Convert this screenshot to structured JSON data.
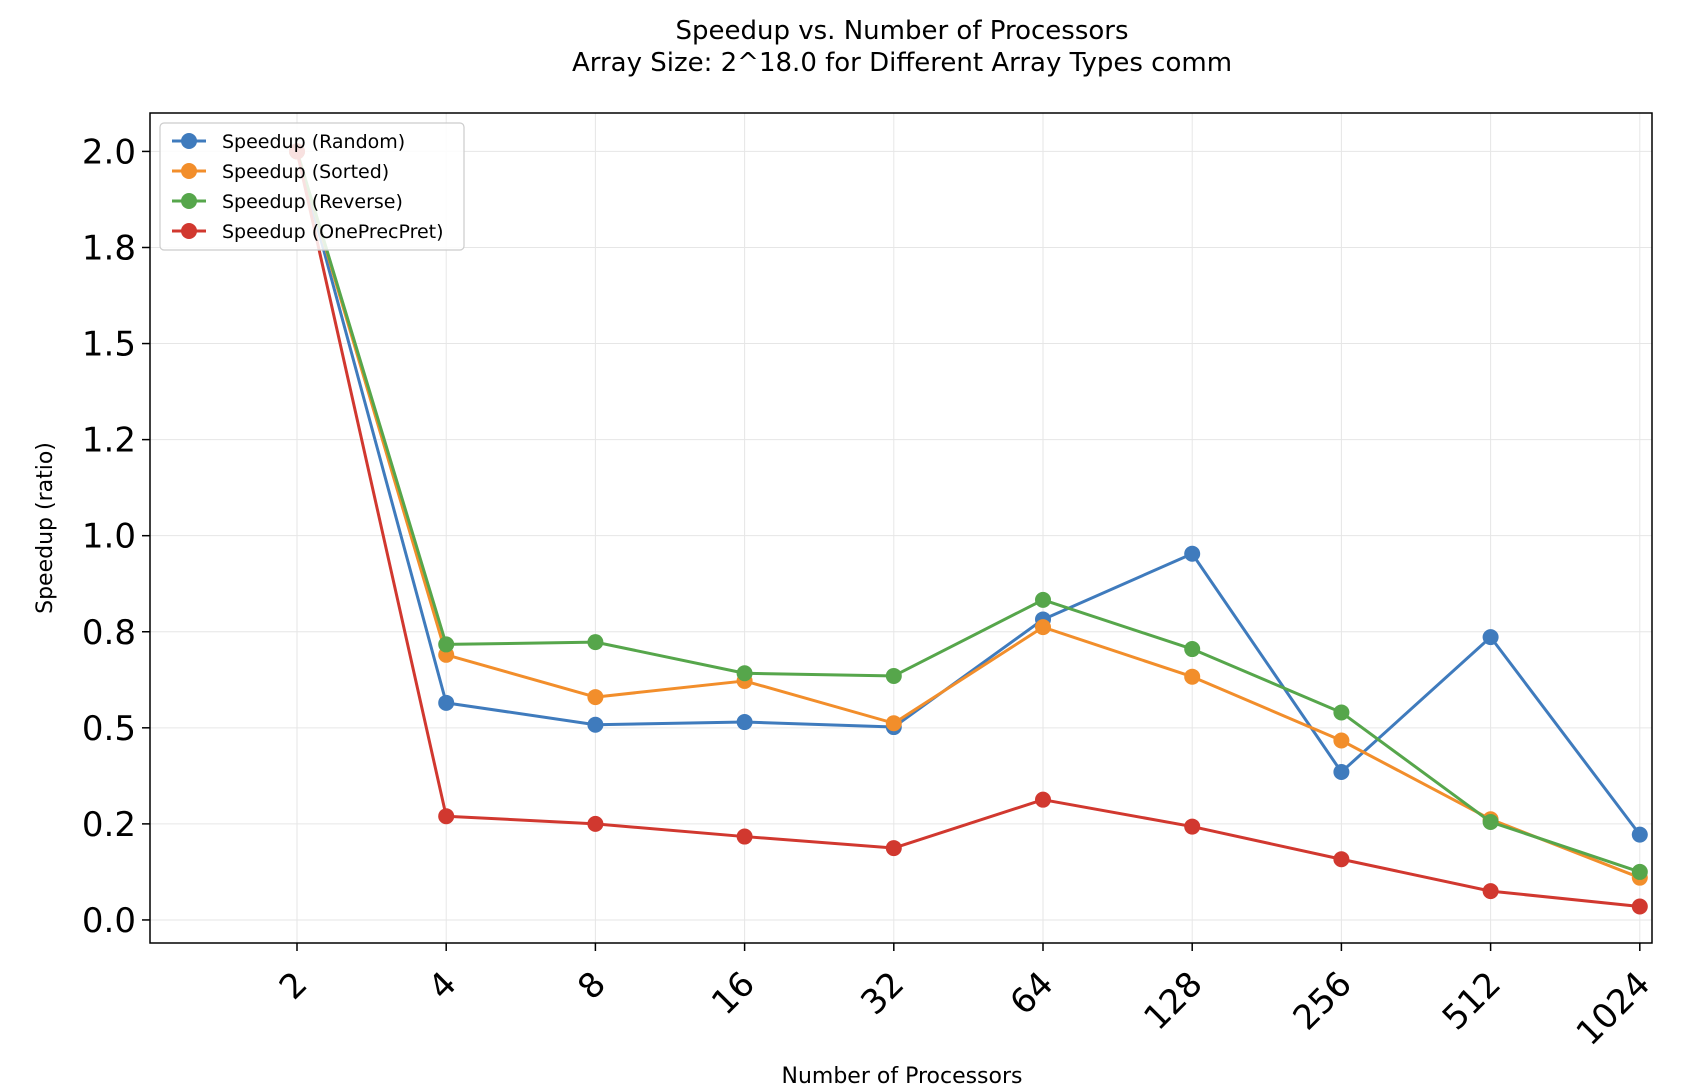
{
  "chart_data": {
    "type": "line",
    "title": "Speedup vs. Number of Processors",
    "subtitle": "Array Size: 2^18.0 for Different Array Types comm",
    "xlabel": "Number of Processors",
    "ylabel": "Speedup (ratio)",
    "x_ticks": [
      "2",
      "4",
      "8",
      "16",
      "32",
      "64",
      "128",
      "256",
      "512",
      "1024"
    ],
    "y_ticks": [
      "0.0",
      "0.2",
      "0.5",
      "0.8",
      "1.0",
      "1.2",
      "1.5",
      "1.8",
      "2.0"
    ],
    "y_tick_values": [
      0.0,
      0.25,
      0.5,
      0.75,
      1.0,
      1.25,
      1.5,
      1.75,
      2.0
    ],
    "ylim": [
      -0.06,
      2.1
    ],
    "grid": true,
    "legend_position": "top-left",
    "series": [
      {
        "name": "Speedup (Random)",
        "color": "#3f7bbd",
        "x": [
          2,
          4,
          8,
          16,
          32,
          64,
          128,
          256,
          512,
          1024
        ],
        "y": [
          2.0,
          0.565,
          0.508,
          0.515,
          0.502,
          0.782,
          0.953,
          0.385,
          0.736,
          0.222
        ]
      },
      {
        "name": "Speedup (Sorted)",
        "color": "#f28e2b",
        "x": [
          2,
          4,
          8,
          16,
          32,
          64,
          128,
          256,
          512,
          1024
        ],
        "y": [
          2.0,
          0.69,
          0.58,
          0.622,
          0.512,
          0.762,
          0.633,
          0.467,
          0.262,
          0.11
        ]
      },
      {
        "name": "Speedup (Reverse)",
        "color": "#56a64b",
        "x": [
          2,
          4,
          8,
          16,
          32,
          64,
          128,
          256,
          512,
          1024
        ],
        "y": [
          2.0,
          0.717,
          0.723,
          0.642,
          0.635,
          0.833,
          0.705,
          0.54,
          0.255,
          0.125
        ]
      },
      {
        "name": "Speedup (OnePrecPret)",
        "color": "#d1382f",
        "x": [
          2,
          4,
          8,
          16,
          32,
          64,
          128,
          256,
          512,
          1024
        ],
        "y": [
          2.0,
          0.27,
          0.25,
          0.217,
          0.187,
          0.313,
          0.243,
          0.158,
          0.075,
          0.035
        ]
      }
    ]
  }
}
